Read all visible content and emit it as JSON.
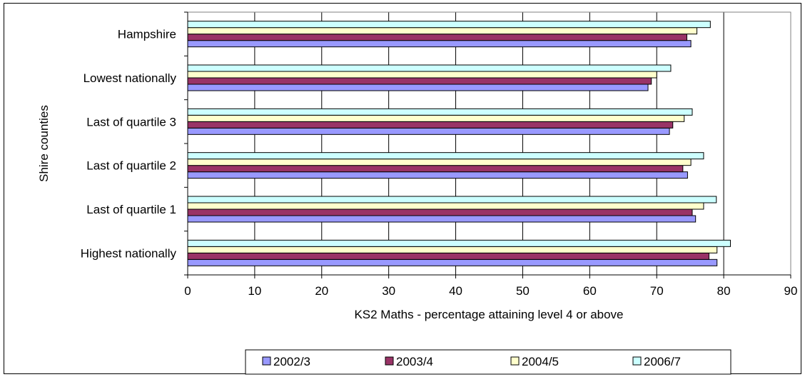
{
  "chart_data": {
    "type": "bar",
    "orientation": "horizontal",
    "title": "",
    "xlabel": "KS2 Maths - percentage attaining level 4 or above",
    "ylabel": "Shire counties",
    "xlim": [
      0,
      90
    ],
    "xticks": [
      "0",
      "10",
      "20",
      "30",
      "40",
      "50",
      "60",
      "70",
      "80",
      "90"
    ],
    "grid": "vertical",
    "legend_position": "bottom",
    "categories": [
      "Highest nationally",
      "Last of quartile 1",
      "Last of quartile 2",
      "Last of quartile 3",
      "Lowest nationally",
      "Hampshire"
    ],
    "series": [
      {
        "name": "2002/3",
        "color": "#9999ff",
        "values": [
          79,
          75.8,
          74.6,
          71.9,
          68.7,
          75.1
        ]
      },
      {
        "name": "2003/4",
        "color": "#993366",
        "values": [
          77.8,
          75.3,
          73.9,
          72.4,
          69.2,
          74.5
        ]
      },
      {
        "name": "2004/5",
        "color": "#ffffcc",
        "values": [
          79,
          77,
          75.1,
          74.1,
          70,
          76
        ]
      },
      {
        "name": "2006/7",
        "color": "#ccffff",
        "values": [
          81,
          78.9,
          77,
          75.3,
          72.1,
          78
        ]
      }
    ]
  }
}
